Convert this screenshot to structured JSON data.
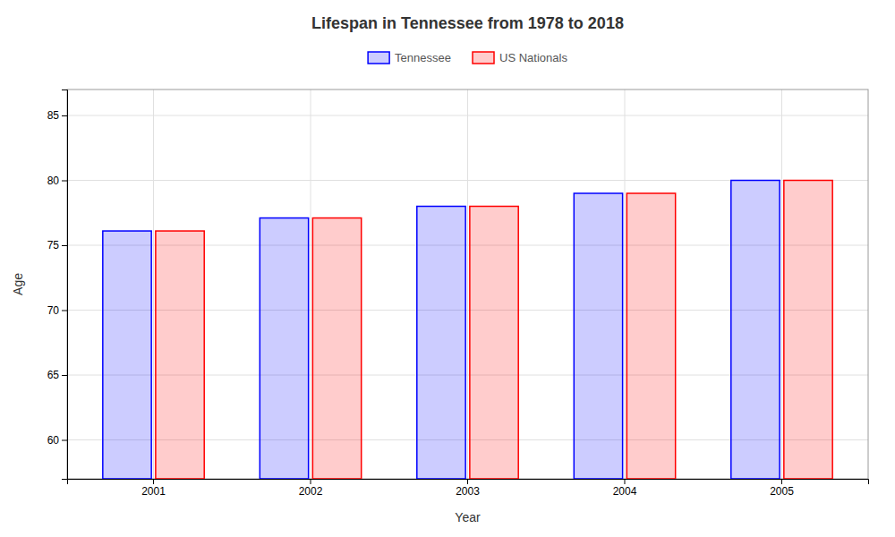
{
  "chart_data": {
    "type": "bar",
    "title": "Lifespan in Tennessee from 1978 to 2018",
    "xlabel": "Year",
    "ylabel": "Age",
    "categories": [
      "2001",
      "2002",
      "2003",
      "2004",
      "2005"
    ],
    "series": [
      {
        "name": "Tennessee",
        "color": "#0000ff",
        "values": [
          76.1,
          77.1,
          78.0,
          79.0,
          80.0
        ]
      },
      {
        "name": "US Nationals",
        "color": "#ff0000",
        "values": [
          76.1,
          77.1,
          78.0,
          79.0,
          80.0
        ]
      }
    ],
    "ylim": [
      57,
      87
    ],
    "yticks": [
      60,
      65,
      70,
      75,
      80,
      85
    ],
    "grid": true,
    "legend": "top"
  }
}
